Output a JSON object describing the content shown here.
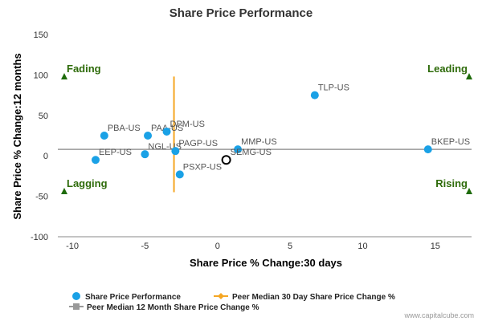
{
  "chart_data": {
    "type": "scatter",
    "title": "Share Price Performance",
    "xlabel": "Share Price % Change:30 days",
    "ylabel": "Share Price % Change:12 months",
    "xlim": [
      -11,
      17.5
    ],
    "ylim": [
      -100,
      150
    ],
    "xticks": [
      -10,
      -5,
      0,
      5,
      10,
      15
    ],
    "yticks": [
      -100,
      -50,
      0,
      50,
      100,
      150
    ],
    "grid": false,
    "legend_position": "bottom-left",
    "series": [
      {
        "name": "Share Price Performance",
        "color": "#1aa1e6",
        "points": [
          {
            "label": "TLP-US",
            "x": 6.7,
            "y": 75
          },
          {
            "label": "PBA-US",
            "x": -7.8,
            "y": 25
          },
          {
            "label": "PAA-US",
            "x": -4.8,
            "y": 25
          },
          {
            "label": "DPM-US",
            "x": -3.5,
            "y": 30
          },
          {
            "label": "MMP-US",
            "x": 1.4,
            "y": 8
          },
          {
            "label": "BKEP-US",
            "x": 14.5,
            "y": 8
          },
          {
            "label": "NGL-US",
            "x": -5.0,
            "y": 2
          },
          {
            "label": "PAGP-US",
            "x": -2.9,
            "y": 6
          },
          {
            "label": "EEP-US",
            "x": -8.4,
            "y": -5
          },
          {
            "label": "PSXP-US",
            "x": -2.6,
            "y": -23
          }
        ]
      }
    ],
    "subject": {
      "label": "SEMG-US",
      "x": 0.6,
      "y": -5
    },
    "peer_median_30d": {
      "name": "Peer Median 30 Day Share Price Change %",
      "color": "#f5a623",
      "x": -3.0,
      "y_range": [
        -45,
        98
      ]
    },
    "peer_median_12m": {
      "name": "Peer Median 12 Month Share Price Change %",
      "color": "#999999",
      "y": 8
    },
    "quadrants": {
      "top_left": "Fading",
      "top_right": "Leading",
      "bottom_left": "Lagging",
      "bottom_right": "Rising",
      "marker_color": "#1e6b0a"
    }
  },
  "credit": "www.capitalcube.com"
}
